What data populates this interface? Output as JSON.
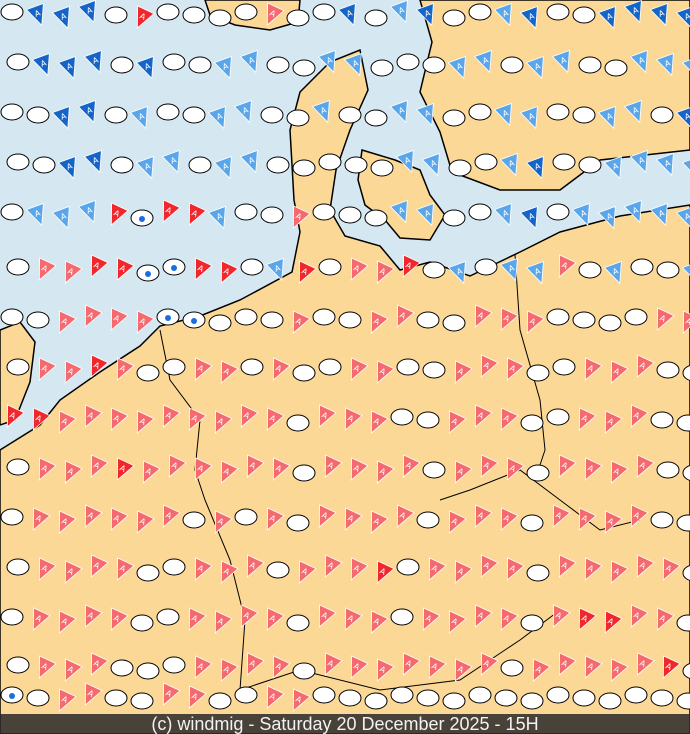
{
  "footer": {
    "credit": "(c) windmig - Saturday 20 December 2025 - 15H"
  },
  "colors": {
    "sea": "#d5e8f2",
    "land": "#fcd897",
    "border": "#000000",
    "red": "#f0282d",
    "pink": "#f46a6e",
    "blue": "#1565c8",
    "light_blue": "#5aa6ea",
    "marker_ellipse": "#ffffff",
    "drop": "#1a6fe0"
  },
  "marker_label": "A",
  "legend_codes": {
    "e": "ellipse",
    "d": "ellipse-with-drop",
    "r": "red-flag",
    "p": "pink-flag",
    "b": "blue-flag",
    "l": "light-blue-flag",
    ".": "none"
  },
  "marker_rows": [
    "ebbbereeeepeebelbeelbeebbbb",
    "ebbbebeelleelleeellelleelll",
    "eebbeleelleeleelleelleelleb",
    "eebbellelleeeeelleelbeellll",
    "elllrdrrleepeeelleelbelllll",
    "epprrddrrelrepprelellpeleel",
    "eeppppddeeepeeppeepppeeeepp",
    "epprpeeppepeeppeepppeepppeee",
    "rrpppppppppepppeepppeepppeee",
    "eppprppppppeppppepppeppppeep",
    "eppppppepepeppppepppeppppeee",
    "eppppeepppepppreppppepppppee",
    "eppppeeppppepppeppppeprrppee",
    "epppeeeppppepppppppepppppree",
    "deppeeppeeppeeeeeeeeeeeeeee"
  ]
}
